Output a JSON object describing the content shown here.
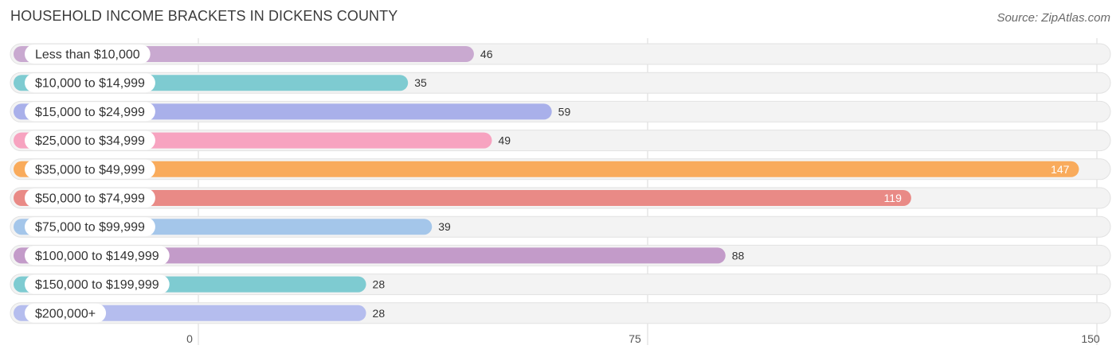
{
  "header": {
    "title": "HOUSEHOLD INCOME BRACKETS IN DICKENS COUNTY",
    "source": "Source: ZipAtlas.com"
  },
  "chart_data": {
    "type": "bar",
    "orientation": "horizontal",
    "title": "HOUSEHOLD INCOME BRACKETS IN DICKENS COUNTY",
    "xlabel": "",
    "ylabel": "",
    "xlim": [
      0,
      150
    ],
    "xticks": [
      0,
      75,
      150
    ],
    "grid": true,
    "categories": [
      "Less than $10,000",
      "$10,000 to $14,999",
      "$15,000 to $24,999",
      "$25,000 to $34,999",
      "$35,000 to $49,999",
      "$50,000 to $74,999",
      "$75,000 to $99,999",
      "$100,000 to $149,999",
      "$150,000 to $199,999",
      "$200,000+"
    ],
    "values": [
      46,
      35,
      59,
      49,
      147,
      119,
      39,
      88,
      28,
      28
    ],
    "colors": [
      "#c9a9d0",
      "#7ecbd1",
      "#a9b0ea",
      "#f7a3c0",
      "#f9ab5c",
      "#e98a86",
      "#a4c6ea",
      "#c39bc9",
      "#7ecbd1",
      "#b5bdee"
    ]
  }
}
